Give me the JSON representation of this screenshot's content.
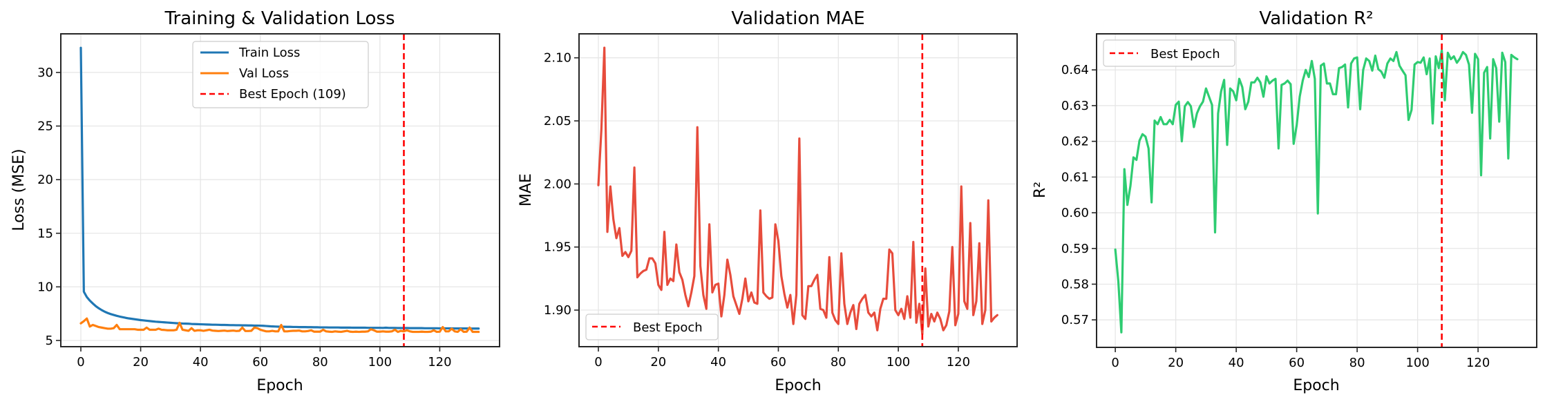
{
  "chart_data": [
    {
      "type": "line",
      "title": "Training & Validation Loss",
      "xlabel": "Epoch",
      "ylabel": "Loss (MSE)",
      "xlim": [
        -6.7,
        140.0
      ],
      "ylim": [
        4.42,
        33.6
      ],
      "xticks": [
        0,
        20,
        40,
        60,
        80,
        100,
        120
      ],
      "yticks": [
        5,
        10,
        15,
        20,
        25,
        30
      ],
      "xtick_labels": [
        "0",
        "20",
        "40",
        "60",
        "80",
        "100",
        "120"
      ],
      "ytick_labels": [
        "5",
        "10",
        "15",
        "20",
        "25",
        "30"
      ],
      "grid": true,
      "legend_position": "upper-center",
      "series": [
        {
          "name": "Train Loss",
          "color": "#1f77b4",
          "values": [
            32.3,
            9.55,
            9.05,
            8.72,
            8.45,
            8.2,
            8.0,
            7.83,
            7.68,
            7.56,
            7.46,
            7.38,
            7.3,
            7.23,
            7.17,
            7.11,
            7.06,
            7.02,
            6.98,
            6.94,
            6.9,
            6.87,
            6.84,
            6.81,
            6.78,
            6.75,
            6.73,
            6.71,
            6.69,
            6.67,
            6.65,
            6.63,
            6.61,
            6.6,
            6.58,
            6.57,
            6.56,
            6.54,
            6.53,
            6.52,
            6.51,
            6.5,
            6.49,
            6.48,
            6.47,
            6.47,
            6.46,
            6.45,
            6.45,
            6.44,
            6.43,
            6.43,
            6.42,
            6.42,
            6.41,
            6.41,
            6.4,
            6.4,
            6.39,
            6.39,
            6.38,
            6.37,
            6.35,
            6.33,
            6.31,
            6.3,
            6.29,
            6.28,
            6.28,
            6.27,
            6.27,
            6.26,
            6.26,
            6.25,
            6.25,
            6.25,
            6.24,
            6.24,
            6.23,
            6.23,
            6.22,
            6.22,
            6.22,
            6.21,
            6.21,
            6.21,
            6.21,
            6.2,
            6.2,
            6.2,
            6.2,
            6.19,
            6.19,
            6.19,
            6.19,
            6.19,
            6.18,
            6.18,
            6.18,
            6.18,
            6.18,
            6.17,
            6.19,
            6.17,
            6.17,
            6.17,
            6.16,
            6.16,
            6.16,
            6.16,
            6.15,
            6.15,
            6.15,
            6.15,
            6.15,
            6.14,
            6.14,
            6.14,
            6.14,
            6.14,
            6.13,
            6.13,
            6.13,
            6.13,
            6.13,
            6.12,
            6.12,
            6.12,
            6.12,
            6.12,
            6.11,
            6.11,
            6.11,
            6.11
          ]
        },
        {
          "name": "Val Loss",
          "color": "#ff7f0e",
          "values": [
            6.6,
            6.8,
            7.05,
            6.3,
            6.45,
            6.35,
            6.25,
            6.2,
            6.15,
            6.1,
            6.1,
            6.15,
            6.45,
            6.05,
            6.05,
            6.05,
            6.05,
            6.05,
            6.05,
            6.0,
            6.0,
            6.0,
            6.2,
            6.0,
            6.0,
            6.0,
            6.1,
            6.0,
            5.98,
            5.95,
            5.95,
            5.95,
            6.0,
            6.65,
            6.0,
            5.95,
            5.9,
            6.15,
            5.9,
            5.95,
            5.95,
            5.9,
            5.95,
            6.0,
            5.92,
            5.9,
            5.88,
            5.9,
            5.92,
            5.88,
            5.9,
            5.92,
            5.88,
            5.9,
            6.2,
            5.88,
            5.88,
            5.9,
            6.2,
            6.15,
            6.0,
            5.92,
            5.85,
            5.85,
            5.9,
            5.85,
            5.85,
            6.45,
            5.85,
            5.85,
            5.88,
            5.9,
            5.9,
            5.92,
            5.85,
            5.85,
            5.88,
            5.95,
            5.82,
            5.82,
            5.82,
            6.0,
            5.85,
            5.82,
            5.8,
            5.85,
            5.82,
            5.8,
            5.85,
            5.9,
            5.82,
            5.8,
            5.82,
            5.8,
            5.82,
            5.82,
            5.85,
            6.05,
            5.95,
            5.82,
            5.82,
            5.85,
            5.82,
            5.82,
            5.85,
            6.0,
            5.8,
            5.9,
            5.85,
            5.95,
            5.85,
            5.8,
            5.8,
            5.8,
            5.82,
            5.8,
            5.8,
            5.82,
            5.95,
            5.8,
            5.82,
            6.25,
            5.85,
            5.85,
            6.1,
            5.85,
            5.8,
            6.05,
            5.8,
            5.82,
            6.2,
            5.8,
            5.8,
            5.8
          ]
        },
        {
          "name": "Best Epoch (109)",
          "color": "#ff0000",
          "style": "dashed",
          "vline": 108
        }
      ]
    },
    {
      "type": "line",
      "title": "Validation MAE",
      "xlabel": "Epoch",
      "ylabel": "MAE",
      "xlim": [
        -6.45,
        139.6
      ],
      "ylim": [
        1.871,
        2.119
      ],
      "xticks": [
        0,
        20,
        40,
        60,
        80,
        100,
        120
      ],
      "yticks": [
        1.9,
        1.95,
        2.0,
        2.05,
        2.1
      ],
      "xtick_labels": [
        "0",
        "20",
        "40",
        "60",
        "80",
        "100",
        "120"
      ],
      "ytick_labels": [
        "1.90",
        "1.95",
        "2.00",
        "2.05",
        "2.10"
      ],
      "grid": true,
      "legend_position": "lower-left",
      "series": [
        {
          "name": "MAE",
          "color": "#e74c3c",
          "values": [
            1.999,
            2.043,
            2.108,
            1.962,
            1.998,
            1.972,
            1.957,
            1.965,
            1.943,
            1.946,
            1.942,
            1.947,
            2.013,
            1.926,
            1.929,
            1.931,
            1.932,
            1.941,
            1.941,
            1.937,
            1.92,
            1.916,
            1.962,
            1.92,
            1.925,
            1.923,
            1.952,
            1.93,
            1.924,
            1.912,
            1.903,
            1.914,
            1.927,
            2.045,
            1.935,
            1.912,
            1.901,
            1.968,
            1.914,
            1.92,
            1.921,
            1.895,
            1.912,
            1.94,
            1.928,
            1.911,
            1.904,
            1.897,
            1.909,
            1.925,
            1.907,
            1.914,
            1.906,
            1.905,
            1.979,
            1.914,
            1.911,
            1.909,
            1.91,
            1.968,
            1.955,
            1.927,
            1.913,
            1.902,
            1.912,
            1.889,
            1.912,
            2.036,
            1.896,
            1.893,
            1.919,
            1.919,
            1.924,
            1.928,
            1.901,
            1.9,
            1.894,
            1.942,
            1.898,
            1.892,
            1.889,
            1.945,
            1.905,
            1.889,
            1.898,
            1.904,
            1.885,
            1.905,
            1.909,
            1.912,
            1.898,
            1.895,
            1.898,
            1.884,
            1.901,
            1.909,
            1.909,
            1.948,
            1.945,
            1.9,
            1.896,
            1.901,
            1.893,
            1.911,
            1.894,
            1.954,
            1.89,
            1.905,
            1.881,
            1.933,
            1.887,
            1.897,
            1.891,
            1.898,
            1.893,
            1.884,
            1.888,
            1.899,
            1.95,
            1.888,
            1.897,
            1.998,
            1.907,
            1.901,
            1.969,
            1.896,
            1.907,
            1.953,
            1.889,
            1.9,
            1.987,
            1.891,
            1.894,
            1.896
          ]
        },
        {
          "name": "Best Epoch",
          "color": "#ff0000",
          "style": "dashed",
          "vline": 108
        }
      ]
    },
    {
      "type": "line",
      "title": "Validation R²",
      "xlabel": "Epoch",
      "ylabel": "R²",
      "xlim": [
        -6.2,
        139.4
      ],
      "ylim": [
        0.5623,
        0.6501
      ],
      "xticks": [
        0,
        20,
        40,
        60,
        80,
        100,
        120
      ],
      "yticks": [
        0.57,
        0.58,
        0.59,
        0.6,
        0.61,
        0.62,
        0.63,
        0.64
      ],
      "xtick_labels": [
        "0",
        "20",
        "40",
        "60",
        "80",
        "100",
        "120"
      ],
      "ytick_labels": [
        "0.57",
        "0.58",
        "0.59",
        "0.60",
        "0.61",
        "0.62",
        "0.63",
        "0.64"
      ],
      "grid": true,
      "legend_position": "upper-left",
      "series": [
        {
          "name": "R²",
          "color": "#2ecc71",
          "values": [
            0.5897,
            0.5808,
            0.5665,
            0.6122,
            0.6022,
            0.6075,
            0.6155,
            0.6148,
            0.6202,
            0.622,
            0.6213,
            0.618,
            0.6029,
            0.6258,
            0.6248,
            0.6268,
            0.6248,
            0.6248,
            0.626,
            0.6248,
            0.6302,
            0.6311,
            0.62,
            0.6298,
            0.631,
            0.6298,
            0.624,
            0.6278,
            0.6298,
            0.6311,
            0.6348,
            0.6325,
            0.6302,
            0.5945,
            0.6278,
            0.634,
            0.6372,
            0.619,
            0.6348,
            0.634,
            0.6315,
            0.6375,
            0.6352,
            0.629,
            0.6311,
            0.6365,
            0.6365,
            0.6378,
            0.6365,
            0.6325,
            0.6382,
            0.6362,
            0.637,
            0.6375,
            0.618,
            0.6358,
            0.6362,
            0.637,
            0.636,
            0.6193,
            0.6245,
            0.6325,
            0.637,
            0.64,
            0.638,
            0.6425,
            0.6375,
            0.5998,
            0.6412,
            0.6418,
            0.6362,
            0.6362,
            0.6332,
            0.6332,
            0.6405,
            0.6408,
            0.6415,
            0.6295,
            0.6418,
            0.6432,
            0.6435,
            0.629,
            0.64,
            0.6432,
            0.6425,
            0.6398,
            0.644,
            0.6402,
            0.6395,
            0.6378,
            0.6418,
            0.6432,
            0.6425,
            0.645,
            0.6412,
            0.6398,
            0.6385,
            0.626,
            0.6288,
            0.6415,
            0.6422,
            0.642,
            0.6435,
            0.6388,
            0.6432,
            0.625,
            0.6438,
            0.6405,
            0.6455,
            0.6315,
            0.6448,
            0.643,
            0.6438,
            0.642,
            0.6432,
            0.645,
            0.6442,
            0.6415,
            0.628,
            0.6445,
            0.643,
            0.6105,
            0.6392,
            0.6408,
            0.6208,
            0.643,
            0.6405,
            0.6255,
            0.6448,
            0.6422,
            0.6152,
            0.6442,
            0.6435,
            0.643
          ]
        },
        {
          "name": "Best Epoch",
          "color": "#ff0000",
          "style": "dashed",
          "vline": 108
        }
      ]
    }
  ]
}
